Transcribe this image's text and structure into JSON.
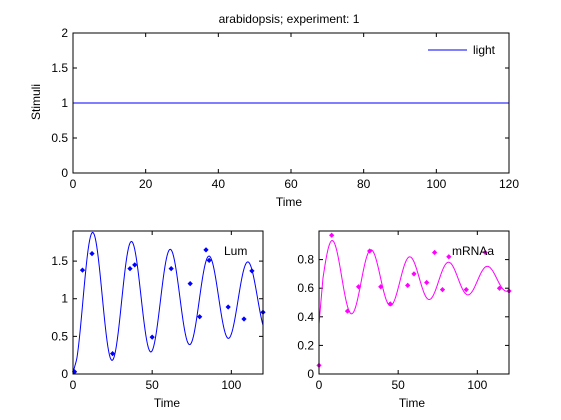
{
  "chart_data": [
    {
      "type": "line",
      "title": "arabidopsis; experiment: 1",
      "xlabel": "Time",
      "ylabel": "Stimuli",
      "xlim": [
        0,
        120
      ],
      "ylim": [
        0,
        2
      ],
      "xticks": [
        0,
        20,
        40,
        60,
        80,
        100,
        120
      ],
      "yticks": [
        0,
        0.5,
        1,
        1.5,
        2
      ],
      "legend_position": "top-right",
      "series": [
        {
          "name": "light",
          "color": "#0000ff",
          "x": [
            0,
            120
          ],
          "y": [
            1,
            1
          ]
        }
      ]
    },
    {
      "type": "line",
      "title": "",
      "xlabel": "Time",
      "ylabel": "",
      "xlim": [
        0,
        120
      ],
      "ylim": [
        0,
        1.9
      ],
      "xticks": [
        0,
        50,
        100
      ],
      "yticks": [
        0,
        0.5,
        1,
        1.5
      ],
      "legend_position": "top-right",
      "series": [
        {
          "name": "Lum",
          "color": "#0000ff",
          "model": {
            "baseline": 1.0,
            "amp0": 0.95,
            "decay": 0.006,
            "period": 24.5,
            "peak": 12.5,
            "rise_start": 0.02,
            "rise_end": 0.5
          },
          "points": {
            "x": [
              1,
              6,
              12,
              25,
              36,
              39,
              50,
              62,
              74,
              80,
              84,
              86,
              98,
              108,
              113,
              120
            ],
            "y": [
              0.03,
              1.38,
              1.6,
              0.27,
              1.4,
              1.45,
              0.49,
              1.4,
              1.2,
              0.76,
              1.65,
              1.51,
              0.89,
              0.73,
              1.37,
              0.82
            ]
          }
        }
      ]
    },
    {
      "type": "line",
      "title": "",
      "xlabel": "Time",
      "ylabel": "",
      "xlim": [
        0,
        120
      ],
      "ylim": [
        0,
        1
      ],
      "xticks": [
        0,
        50,
        100
      ],
      "yticks": [
        0,
        0.2,
        0.4,
        0.6,
        0.8
      ],
      "legend_position": "top-right",
      "series": [
        {
          "name": "mRNAa",
          "color": "#ff00ff",
          "model": {
            "baseline": 0.66,
            "amp0": 0.3,
            "decay": 0.011,
            "period": 24.5,
            "peak": 8.5,
            "rise_start": 0.35,
            "rise_end": 0.7
          },
          "points": {
            "x": [
              0,
              8,
              18,
              25,
              32,
              39,
              45,
              56,
              60,
              68,
              73,
              78,
              82,
              93,
              105,
              114,
              120
            ],
            "y": [
              0.06,
              0.97,
              0.44,
              0.61,
              0.86,
              0.61,
              0.49,
              0.62,
              0.7,
              0.64,
              0.85,
              0.59,
              0.82,
              0.59,
              0.85,
              0.6,
              0.58
            ]
          }
        }
      ]
    }
  ]
}
